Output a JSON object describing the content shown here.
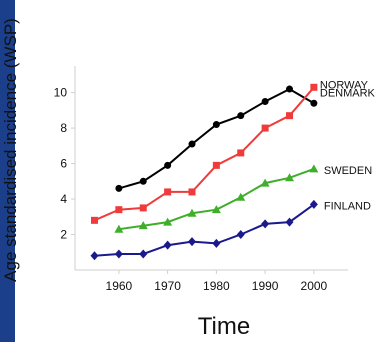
{
  "slide": {
    "background": "#1b3f8b",
    "panel_color": "#ffffff"
  },
  "chart_data": {
    "type": "line",
    "title": "",
    "xlabel": "Time",
    "ylabel": "Age standardised incidence (WSP)",
    "xlim": [
      1951,
      2007
    ],
    "ylim": [
      0,
      11.5
    ],
    "x_ticks": [
      1960,
      1970,
      1980,
      1990,
      2000
    ],
    "y_ticks": [
      2,
      4,
      6,
      8,
      10
    ],
    "grid": false,
    "legend": "direct labels at line ends",
    "series": [
      {
        "name": "NORWAY",
        "color": "#000000",
        "marker": "circle",
        "x": [
          1960,
          1965,
          1970,
          1975,
          1980,
          1985,
          1990,
          1995,
          2000
        ],
        "y": [
          4.6,
          5.0,
          5.9,
          7.1,
          8.2,
          8.7,
          9.5,
          10.2,
          9.4
        ]
      },
      {
        "name": "DENMARK",
        "color": "#ef3b3b",
        "marker": "square",
        "x": [
          1955,
          1960,
          1965,
          1970,
          1975,
          1980,
          1985,
          1990,
          1995,
          2000
        ],
        "y": [
          2.8,
          3.4,
          3.5,
          4.4,
          4.4,
          5.9,
          6.6,
          8.0,
          8.7,
          10.3
        ]
      },
      {
        "name": "SWEDEN",
        "color": "#3fae2a",
        "marker": "triangle",
        "x": [
          1960,
          1965,
          1970,
          1975,
          1980,
          1985,
          1990,
          1995,
          2000
        ],
        "y": [
          2.3,
          2.5,
          2.7,
          3.2,
          3.4,
          4.1,
          4.9,
          5.2,
          5.7
        ]
      },
      {
        "name": "FINLAND",
        "color": "#1a1a8c",
        "marker": "diamond",
        "x": [
          1955,
          1960,
          1965,
          1970,
          1975,
          1980,
          1985,
          1990,
          1995,
          2000
        ],
        "y": [
          0.8,
          0.9,
          0.9,
          1.4,
          1.6,
          1.5,
          2.0,
          2.6,
          2.7,
          3.7
        ]
      }
    ]
  }
}
